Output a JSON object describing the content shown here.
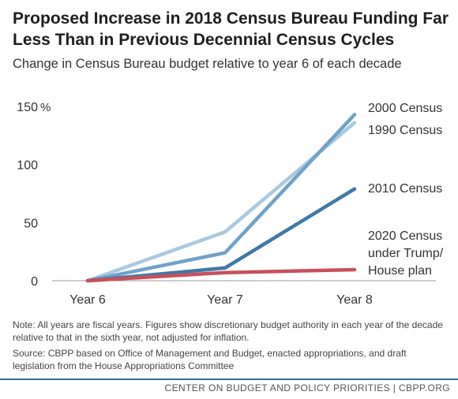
{
  "title": "Proposed Increase in 2018 Census Bureau Funding Far Less Than in Previous Decennial Census Cycles",
  "subtitle": "Change in Census Bureau budget relative to year 6 of each decade",
  "chart_data": {
    "type": "line",
    "x": [
      "Year 6",
      "Year 7",
      "Year 8"
    ],
    "ylim": [
      0,
      150
    ],
    "yticks": [
      0,
      50,
      100,
      150
    ],
    "ytick_labels": [
      "0",
      "50",
      "100",
      "150"
    ],
    "y_unit": "%",
    "grid": false,
    "series": [
      {
        "name": "1990 Census",
        "values": [
          0,
          42,
          136
        ],
        "color": "#a9c9e0",
        "label_lines": [
          "1990 Census"
        ]
      },
      {
        "name": "2000 Census",
        "values": [
          0,
          24,
          143
        ],
        "color": "#6fa2c9",
        "label_lines": [
          "2000 Census"
        ]
      },
      {
        "name": "2010 Census",
        "values": [
          0,
          11,
          79
        ],
        "color": "#3f79a8",
        "label_lines": [
          "2010 Census"
        ]
      },
      {
        "name": "2020 Census under Trump/ House plan",
        "values": [
          0,
          7,
          9.5
        ],
        "color": "#c9505a",
        "label_lines": [
          "2020 Census",
          "under Trump/",
          "House plan"
        ]
      }
    ]
  },
  "notes": {
    "note": "Note: All years are fiscal years.  Figures show discretionary budget authority in each year of the decade relative to that in the sixth year, not adjusted for inflation.",
    "source": "Source: CBPP based on Office of Management and Budget, enacted appropriations, and draft legislation from the House Appropriations Committee"
  },
  "footer": "CENTER ON BUDGET AND POLICY PRIORITIES | CBPP.ORG"
}
